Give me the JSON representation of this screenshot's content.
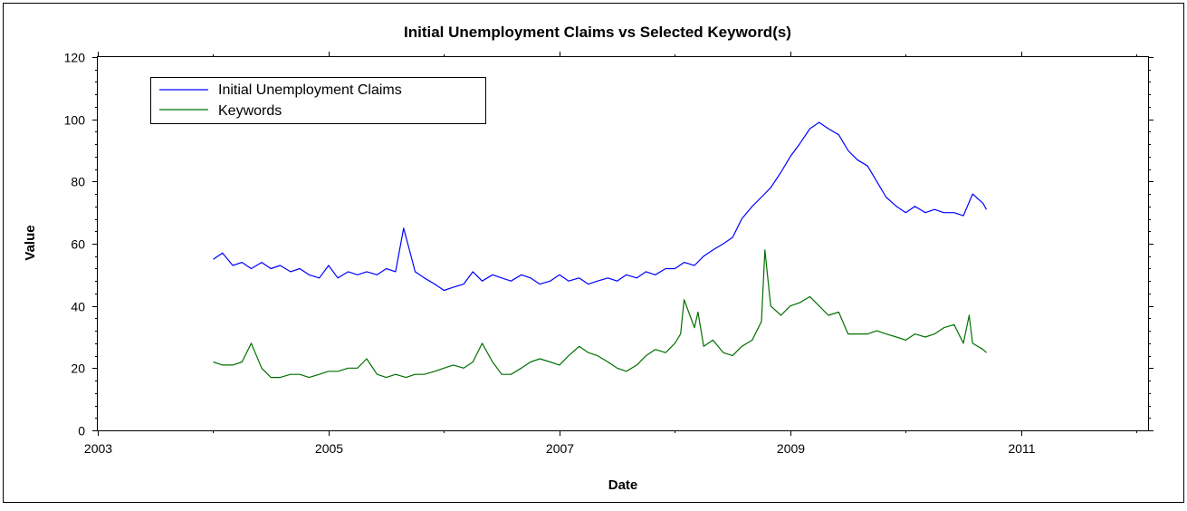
{
  "chart_data": {
    "type": "line",
    "title": "Initial Unemployment Claims vs Selected Keyword(s)",
    "xlabel": "Date",
    "ylabel": "Value",
    "xlim": [
      2003,
      2012.1
    ],
    "ylim": [
      0,
      120
    ],
    "x_ticks": [
      2003,
      2005,
      2007,
      2009,
      2011
    ],
    "y_ticks": [
      0,
      20,
      40,
      60,
      80,
      100,
      120
    ],
    "legend_position": "top-left",
    "grid": false,
    "series": [
      {
        "name": "Initial Unemployment Claims",
        "color": "#0000ff",
        "x": [
          2004.0,
          2004.08,
          2004.17,
          2004.25,
          2004.33,
          2004.42,
          2004.5,
          2004.58,
          2004.67,
          2004.75,
          2004.83,
          2004.92,
          2005.0,
          2005.08,
          2005.17,
          2005.25,
          2005.33,
          2005.42,
          2005.5,
          2005.58,
          2005.65,
          2005.7,
          2005.75,
          2005.83,
          2005.92,
          2006.0,
          2006.08,
          2006.17,
          2006.25,
          2006.33,
          2006.42,
          2006.5,
          2006.58,
          2006.67,
          2006.75,
          2006.83,
          2006.92,
          2007.0,
          2007.08,
          2007.17,
          2007.25,
          2007.33,
          2007.42,
          2007.5,
          2007.58,
          2007.67,
          2007.75,
          2007.83,
          2007.92,
          2008.0,
          2008.08,
          2008.17,
          2008.25,
          2008.33,
          2008.42,
          2008.5,
          2008.58,
          2008.67,
          2008.75,
          2008.83,
          2008.92,
          2009.0,
          2009.08,
          2009.17,
          2009.25,
          2009.33,
          2009.42,
          2009.5,
          2009.58,
          2009.67,
          2009.75,
          2009.83,
          2009.92,
          2010.0,
          2010.08,
          2010.17,
          2010.25,
          2010.33,
          2010.42,
          2010.5,
          2010.58,
          2010.67,
          2010.7
        ],
        "values": [
          55,
          57,
          53,
          54,
          52,
          54,
          52,
          53,
          51,
          52,
          50,
          49,
          53,
          49,
          51,
          50,
          51,
          50,
          52,
          51,
          65,
          58,
          51,
          49,
          47,
          45,
          46,
          47,
          51,
          48,
          50,
          49,
          48,
          50,
          49,
          47,
          48,
          50,
          48,
          49,
          47,
          48,
          49,
          48,
          50,
          49,
          51,
          50,
          52,
          52,
          54,
          53,
          56,
          58,
          60,
          62,
          68,
          72,
          75,
          78,
          83,
          88,
          92,
          97,
          99,
          97,
          95,
          90,
          87,
          85,
          80,
          75,
          72,
          70,
          72,
          70,
          71,
          70,
          70,
          69,
          76,
          73,
          71
        ]
      },
      {
        "name": "Keywords",
        "color": "#007000",
        "x": [
          2004.0,
          2004.08,
          2004.17,
          2004.25,
          2004.33,
          2004.42,
          2004.5,
          2004.58,
          2004.67,
          2004.75,
          2004.83,
          2004.92,
          2005.0,
          2005.08,
          2005.17,
          2005.25,
          2005.33,
          2005.42,
          2005.5,
          2005.58,
          2005.67,
          2005.75,
          2005.83,
          2005.92,
          2006.0,
          2006.08,
          2006.17,
          2006.25,
          2006.33,
          2006.42,
          2006.5,
          2006.58,
          2006.67,
          2006.75,
          2006.83,
          2006.92,
          2007.0,
          2007.08,
          2007.17,
          2007.25,
          2007.33,
          2007.42,
          2007.5,
          2007.58,
          2007.67,
          2007.75,
          2007.83,
          2007.92,
          2008.0,
          2008.05,
          2008.08,
          2008.17,
          2008.2,
          2008.25,
          2008.33,
          2008.42,
          2008.5,
          2008.58,
          2008.67,
          2008.75,
          2008.78,
          2008.83,
          2008.92,
          2009.0,
          2009.08,
          2009.17,
          2009.25,
          2009.33,
          2009.42,
          2009.5,
          2009.58,
          2009.67,
          2009.75,
          2009.83,
          2009.92,
          2010.0,
          2010.08,
          2010.17,
          2010.25,
          2010.33,
          2010.42,
          2010.5,
          2010.55,
          2010.58,
          2010.67,
          2010.7
        ],
        "values": [
          22,
          21,
          21,
          22,
          28,
          20,
          17,
          17,
          18,
          18,
          17,
          18,
          19,
          19,
          20,
          20,
          23,
          18,
          17,
          18,
          17,
          18,
          18,
          19,
          20,
          21,
          20,
          22,
          28,
          22,
          18,
          18,
          20,
          22,
          23,
          22,
          21,
          24,
          27,
          25,
          24,
          22,
          20,
          19,
          21,
          24,
          26,
          25,
          28,
          31,
          42,
          33,
          38,
          27,
          29,
          25,
          24,
          27,
          29,
          35,
          58,
          40,
          37,
          40,
          41,
          43,
          40,
          37,
          38,
          31,
          31,
          31,
          32,
          31,
          30,
          29,
          31,
          30,
          31,
          33,
          34,
          28,
          37,
          28,
          26,
          25
        ]
      }
    ]
  }
}
